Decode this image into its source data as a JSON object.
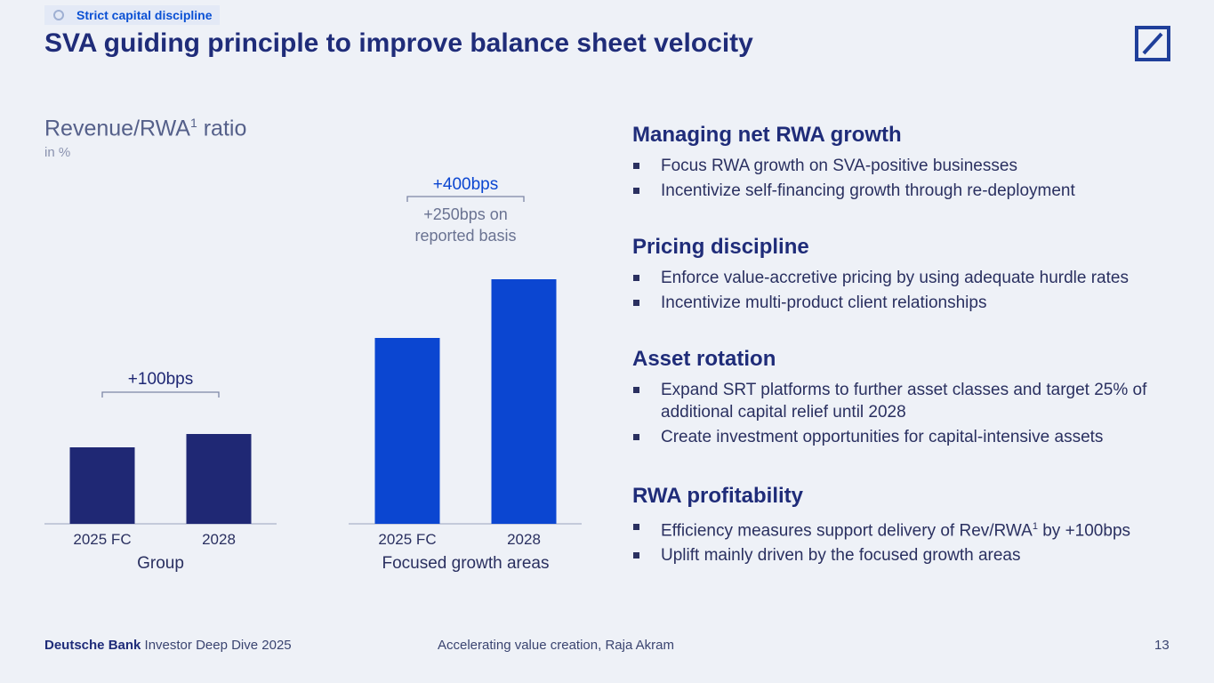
{
  "header": {
    "tag": "Strict capital discipline",
    "title": "SVA guiding principle to improve balance sheet velocity"
  },
  "chart_header": {
    "title_main": "Revenue/RWA",
    "title_sup": "1",
    "title_rest": " ratio",
    "unit": "in %"
  },
  "chart_data": [
    {
      "type": "bar",
      "title": "Group",
      "categories": [
        "2025 FC",
        "2028"
      ],
      "values": [
        86,
        101
      ],
      "value_note": "relative bar heights, no values printed",
      "color": "#1f2874",
      "annotation": "+100bps",
      "annotation_sub": ""
    },
    {
      "type": "bar",
      "title": "Focused growth areas",
      "categories": [
        "2025 FC",
        "2028"
      ],
      "values": [
        209,
        275
      ],
      "value_note": "relative bar heights, no values printed",
      "color": "#0b46d1",
      "annotation": "+400bps",
      "annotation_sub": "+250bps on reported basis"
    }
  ],
  "sections": [
    {
      "heading": "Managing net RWA growth",
      "bullets": [
        "Focus RWA growth on SVA-positive businesses",
        "Incentivize self-financing growth through re-deployment"
      ]
    },
    {
      "heading": "Pricing discipline",
      "bullets": [
        "Enforce value-accretive pricing by using adequate hurdle rates",
        "Incentivize multi-product client relationships"
      ]
    },
    {
      "heading": "Asset rotation",
      "bullets": [
        "Expand SRT platforms to further asset classes and target 25% of additional capital relief until 2028",
        "Create investment opportunities for capital-intensive assets"
      ]
    },
    {
      "heading": "RWA profitability",
      "bullets": [
        "Efficiency measures support delivery of Rev/RWA",
        "Uplift mainly driven by the focused growth areas"
      ],
      "bullet_sup": "1",
      "bullet_tail": " by +100bps"
    }
  ],
  "footer": {
    "brand": "Deutsche Bank",
    "event": " Investor Deep Dive 2025",
    "center": "Accelerating value creation, Raja Akram",
    "page": "13"
  },
  "colors": {
    "navy": "#1f2874",
    "blue": "#0b46d1",
    "title": "#1f2c79",
    "background": "#eef1f7"
  }
}
